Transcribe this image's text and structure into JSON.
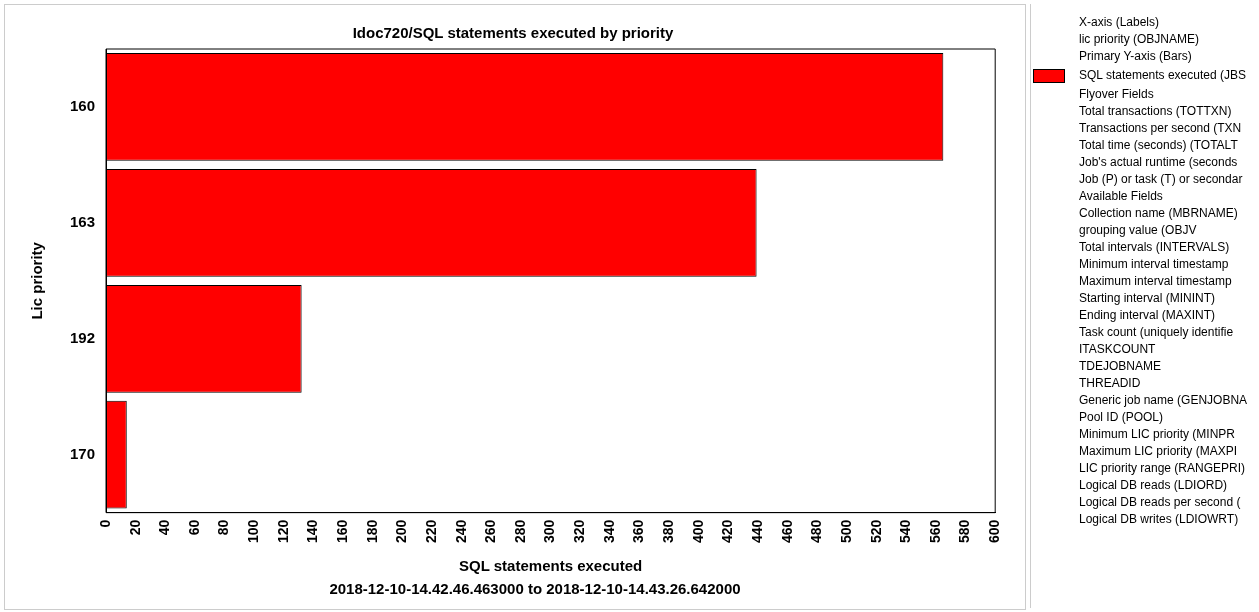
{
  "chart_data": {
    "type": "bar",
    "orientation": "horizontal",
    "title": "Idoc720/SQL statements executed by priority",
    "xlabel": "SQL statements executed",
    "ylabel": "Lic priority",
    "categories": [
      "160",
      "163",
      "192",
      "170"
    ],
    "series": [
      {
        "name": "SQL statements executed (JBS",
        "color": "#ff0000",
        "values": [
          565,
          439,
          132,
          14
        ]
      }
    ],
    "xlim": [
      0,
      600
    ],
    "xticks": [
      0,
      20,
      40,
      60,
      80,
      100,
      120,
      140,
      160,
      180,
      200,
      220,
      240,
      260,
      280,
      300,
      320,
      340,
      360,
      380,
      400,
      420,
      440,
      460,
      480,
      500,
      520,
      540,
      560,
      580,
      600
    ],
    "grid": false,
    "legend": "right",
    "annotations": [
      "2018-12-10-14.42.46.463000 to 2018-12-10-14.43.26.642000",
      "X-axis (Labels)",
      "lic priority (OBJNAME)",
      "Primary Y-axis (Bars)",
      "Flyover Fields",
      "Total transactions (TOTTXN)",
      "Transactions per second (TXN",
      "Total time (seconds) (TOTALT",
      "Job's actual runtime (seconds",
      "Job (P) or task (T) or secondar",
      "Available Fields",
      "Collection name (MBRNAME)",
      "grouping value (OBJV",
      "Total intervals (INTERVALS)",
      "Minimum interval timestamp",
      "Maximum interval timestamp",
      "Starting interval (MININT)",
      "Ending interval (MAXINT)",
      "Task count (uniquely identifie",
      "ITASKCOUNT",
      "TDEJOBNAME",
      "THREADID",
      "Generic job name (GENJOBNA",
      "Pool ID (POOL)",
      "Minimum LIC priority (MINPR",
      "Maximum LIC priority (MAXPI",
      "LIC priority range (RANGEPRI)",
      "Logical DB reads (LDIORD)",
      "Logical DB reads per second (",
      "Logical DB writes (LDIOWRT)"
    ]
  }
}
